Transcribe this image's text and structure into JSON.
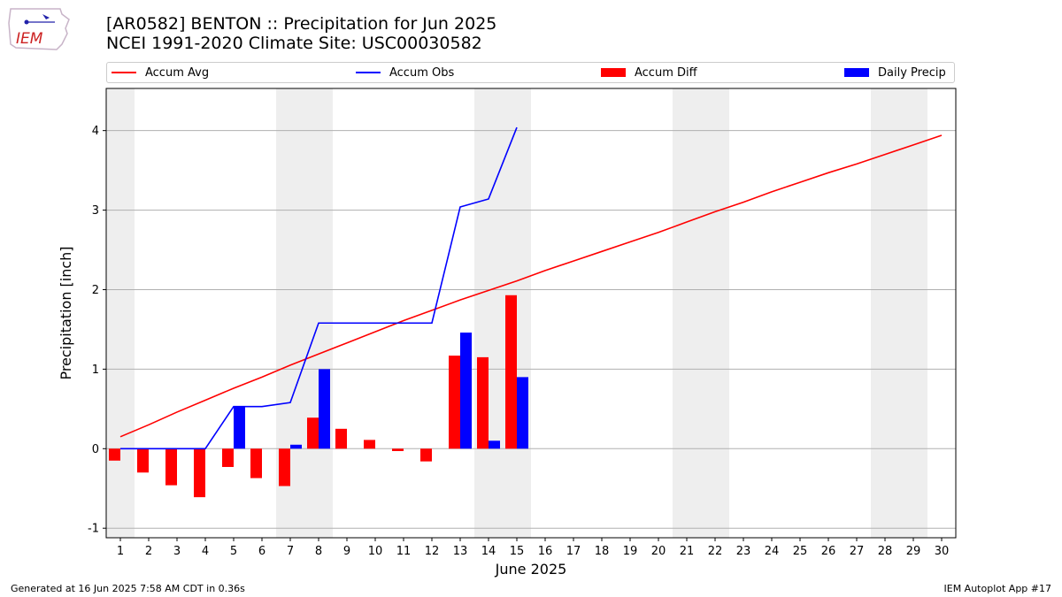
{
  "header": {
    "title_line1": "[AR0582] BENTON :: Precipitation for Jun 2025",
    "title_line2": "NCEI 1991-2020 Climate Site: USC00030582"
  },
  "logo": {
    "text": "IEM",
    "icon": "iowa-state-outline-logo"
  },
  "legend": {
    "items": [
      {
        "label": "Accum Avg",
        "color": "#ff0000",
        "kind": "line"
      },
      {
        "label": "Accum Obs",
        "color": "#0000ff",
        "kind": "line"
      },
      {
        "label": "Accum Diff",
        "color": "#ff0000",
        "kind": "box"
      },
      {
        "label": "Daily Precip",
        "color": "#0000ff",
        "kind": "box"
      }
    ]
  },
  "footer": {
    "left": "Generated at 16 Jun 2025 7:58 AM CDT in 0.36s",
    "right": "IEM Autoplot App #17"
  },
  "chart_data": {
    "type": "bar",
    "title": "[AR0582] BENTON :: Precipitation for Jun 2025",
    "subtitle": "NCEI 1991-2020 Climate Site: USC00030582",
    "xlabel": "June 2025",
    "ylabel": "Precipitation [inch]",
    "xlim": [
      0.5,
      30.5
    ],
    "ylim": [
      -1.12,
      4.53
    ],
    "x_ticks": [
      1,
      2,
      3,
      4,
      5,
      6,
      7,
      8,
      9,
      10,
      11,
      12,
      13,
      14,
      15,
      16,
      17,
      18,
      19,
      20,
      21,
      22,
      23,
      24,
      25,
      26,
      27,
      28,
      29,
      30
    ],
    "y_ticks": [
      -1,
      0,
      1,
      2,
      3,
      4
    ],
    "grid": "horizontal",
    "legend_position": "top",
    "weekend_shading": [
      [
        0.5,
        1.5
      ],
      [
        6.5,
        8.5
      ],
      [
        13.5,
        15.5
      ],
      [
        20.5,
        22.5
      ],
      [
        27.5,
        29.5
      ]
    ],
    "colors": {
      "avg": "#ff0000",
      "obs": "#0000ff",
      "diff": "#ff0000",
      "daily": "#0000ff",
      "shade": "#eeeeee",
      "grid": "#b0b0b0"
    },
    "series": [
      {
        "name": "Accum Avg",
        "kind": "line",
        "x": [
          1,
          2,
          3,
          4,
          5,
          6,
          7,
          8,
          9,
          10,
          11,
          12,
          13,
          14,
          15,
          16,
          17,
          18,
          19,
          20,
          21,
          22,
          23,
          24,
          25,
          26,
          27,
          28,
          29,
          30
        ],
        "values": [
          0.15,
          0.3,
          0.46,
          0.61,
          0.76,
          0.9,
          1.05,
          1.19,
          1.33,
          1.47,
          1.61,
          1.74,
          1.87,
          1.99,
          2.11,
          2.24,
          2.36,
          2.48,
          2.6,
          2.72,
          2.85,
          2.98,
          3.1,
          3.23,
          3.35,
          3.47,
          3.58,
          3.7,
          3.82,
          3.94
        ]
      },
      {
        "name": "Accum Obs",
        "kind": "line",
        "x": [
          1,
          2,
          3,
          4,
          5,
          6,
          7,
          8,
          9,
          10,
          11,
          12,
          13,
          14,
          15
        ],
        "values": [
          0.0,
          0.0,
          0.0,
          0.0,
          0.53,
          0.53,
          0.58,
          1.58,
          1.58,
          1.58,
          1.58,
          1.58,
          3.04,
          3.14,
          4.04
        ]
      },
      {
        "name": "Accum Diff",
        "kind": "bar",
        "x": [
          1,
          2,
          3,
          4,
          5,
          6,
          7,
          8,
          9,
          10,
          11,
          12,
          13,
          14,
          15
        ],
        "values": [
          -0.15,
          -0.3,
          -0.46,
          -0.61,
          -0.23,
          -0.37,
          -0.47,
          0.39,
          0.25,
          0.11,
          -0.03,
          -0.16,
          1.17,
          1.15,
          1.93
        ]
      },
      {
        "name": "Daily Precip",
        "kind": "bar",
        "x": [
          1,
          2,
          3,
          4,
          5,
          6,
          7,
          8,
          9,
          10,
          11,
          12,
          13,
          14,
          15
        ],
        "values": [
          0,
          0,
          0,
          0,
          0.53,
          0,
          0.05,
          1.0,
          0,
          0,
          0,
          0,
          1.46,
          0.1,
          0.9
        ]
      }
    ]
  }
}
